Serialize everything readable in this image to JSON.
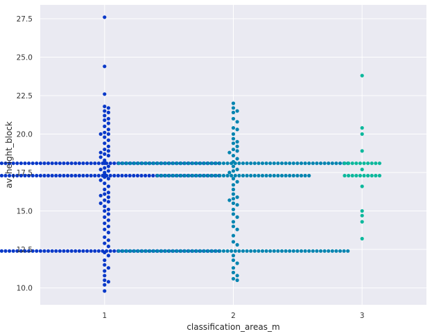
{
  "chart_data": {
    "type": "scatter",
    "subtype": "swarm",
    "title": "",
    "xlabel": "classification_areas_m",
    "ylabel": "av_height_block",
    "categories": [
      "1",
      "2",
      "3"
    ],
    "ylim": [
      8.9,
      28.4
    ],
    "yticks": [
      "10.0",
      "12.5",
      "15.0",
      "17.5",
      "20.0",
      "22.5",
      "25.0",
      "27.5"
    ],
    "grid": true,
    "background": "#eaeaf2",
    "grid_color": "#ffffff",
    "colors": [
      "#0838c8",
      "#0484b0",
      "#0cb89c"
    ],
    "series": [
      {
        "category": "1",
        "values": [
          27.6,
          24.4,
          22.6,
          21.8,
          21.7,
          21.5,
          21.4,
          21.2,
          21.0,
          20.9,
          20.7,
          20.5,
          20.3,
          20.1,
          20.0,
          20.0,
          19.8,
          19.6,
          19.4,
          19.2,
          19.0,
          18.9,
          18.8,
          18.7,
          18.6,
          18.5,
          18.3,
          18.2,
          18.1,
          17.9,
          17.8,
          17.7,
          17.6,
          17.5,
          17.4,
          17.2,
          17.1,
          17.0,
          16.8,
          16.6,
          16.4,
          16.2,
          16.1,
          16.0,
          15.9,
          15.7,
          15.6,
          15.5,
          15.3,
          15.1,
          15.0,
          14.8,
          14.6,
          14.4,
          14.2,
          14.0,
          13.8,
          13.6,
          13.3,
          13.1,
          12.9,
          12.7,
          12.3,
          12.1,
          11.8,
          11.5,
          11.3,
          11.1,
          10.8,
          10.5,
          10.4,
          10.2,
          9.8
        ],
        "stripes": [
          {
            "value": 18.1,
            "count": 60
          },
          {
            "value": 17.3,
            "count": 60
          },
          {
            "value": 12.4,
            "count": 60
          }
        ]
      },
      {
        "category": "2",
        "values": [
          22.0,
          21.7,
          21.5,
          21.4,
          21.0,
          20.8,
          20.4,
          20.3,
          20.0,
          19.7,
          19.5,
          19.4,
          19.2,
          19.0,
          18.9,
          18.8,
          18.6,
          18.4,
          18.2,
          17.9,
          17.7,
          17.6,
          17.5,
          17.1,
          16.9,
          16.7,
          16.4,
          16.1,
          15.9,
          15.8,
          15.7,
          15.5,
          15.4,
          15.1,
          14.8,
          14.6,
          14.3,
          14.0,
          13.8,
          13.4,
          13.0,
          12.8,
          12.1,
          11.8,
          11.6,
          11.3,
          11.0,
          10.8,
          10.6,
          10.5
        ],
        "stripes": [
          {
            "value": 18.1,
            "count": 60
          },
          {
            "value": 17.3,
            "count": 40
          },
          {
            "value": 12.4,
            "count": 60
          }
        ]
      },
      {
        "category": "3",
        "values": [
          23.8,
          20.4,
          20.0,
          18.9,
          17.7,
          16.6,
          15.0,
          14.7,
          14.3,
          13.2
        ],
        "stripes": [
          {
            "value": 18.1,
            "count": 10
          },
          {
            "value": 17.3,
            "count": 10
          }
        ]
      }
    ]
  }
}
